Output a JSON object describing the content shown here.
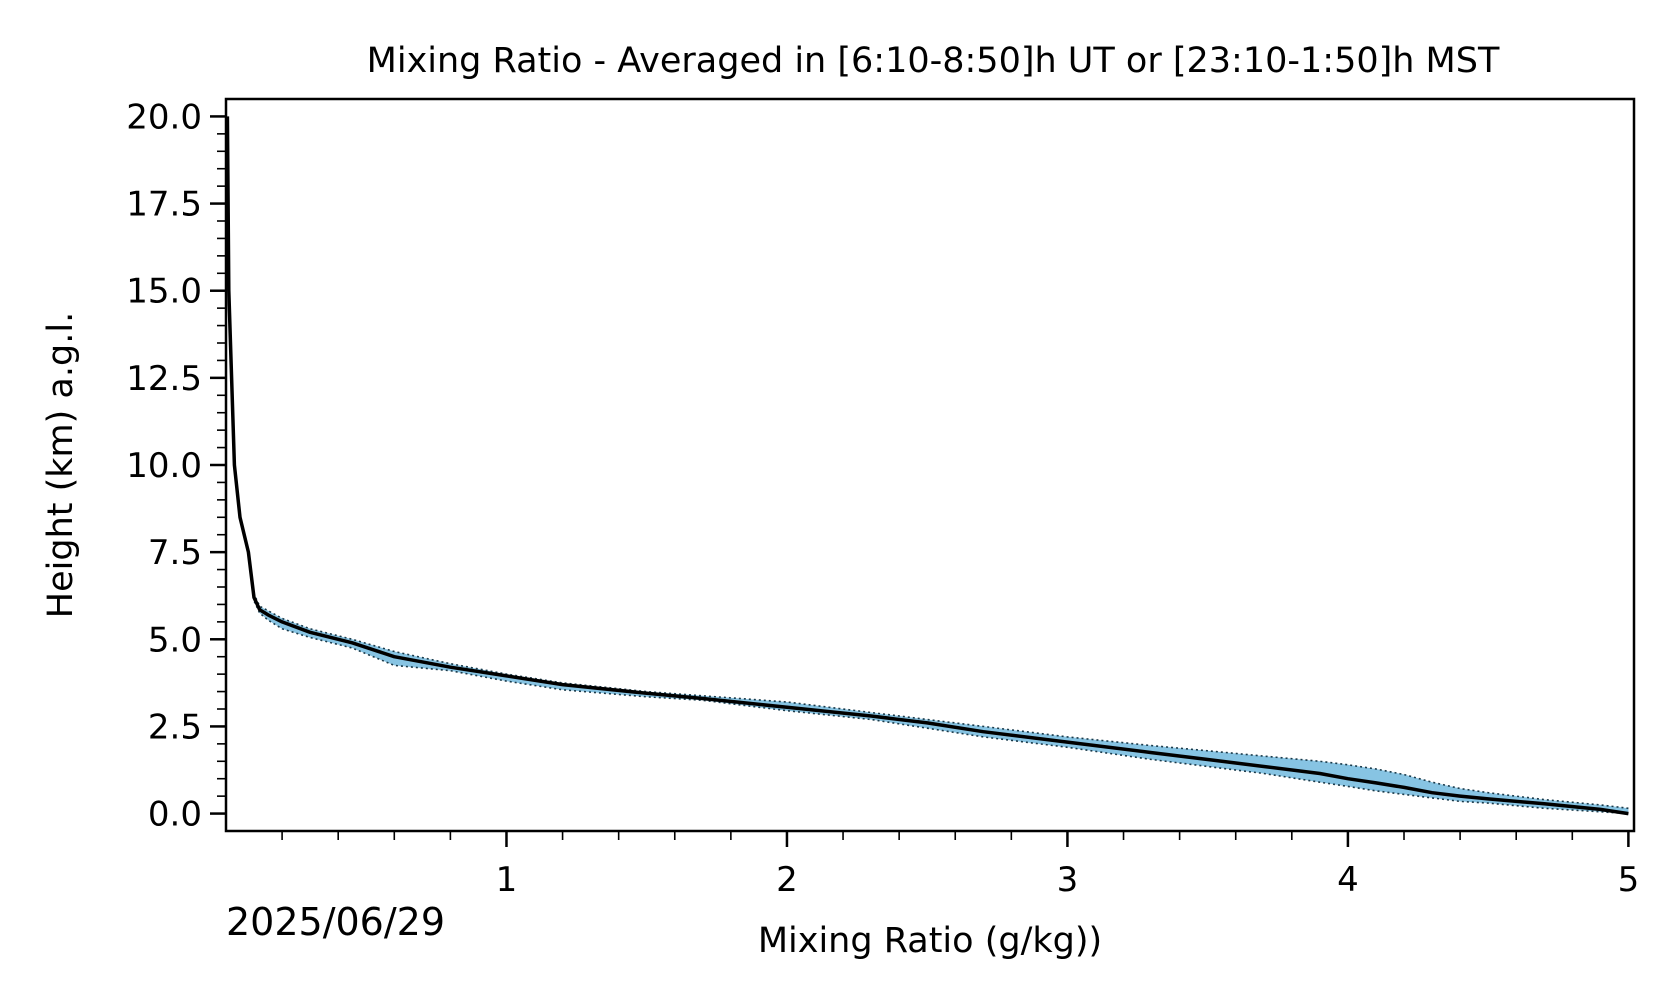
{
  "chart_data": {
    "type": "line",
    "title": "Mixing Ratio - Averaged in [6:10-8:50]h UT or [23:10-1:50]h MST",
    "xlabel": "Mixing Ratio (g/kg))",
    "ylabel": "Height (km) a.g.l.",
    "xlim": [
      0.0,
      5.02
    ],
    "ylim": [
      -0.5,
      20.5
    ],
    "x_ticks": [
      {
        "value": 1,
        "label": "1"
      },
      {
        "value": 2,
        "label": "2"
      },
      {
        "value": 3,
        "label": "3"
      },
      {
        "value": 4,
        "label": "4"
      },
      {
        "value": 5,
        "label": "5"
      }
    ],
    "y_ticks": [
      {
        "value": 0.0,
        "label": "0.0"
      },
      {
        "value": 2.5,
        "label": "2.5"
      },
      {
        "value": 5.0,
        "label": "5.0"
      },
      {
        "value": 7.5,
        "label": "7.5"
      },
      {
        "value": 10.0,
        "label": "10.0"
      },
      {
        "value": 12.5,
        "label": "12.5"
      },
      {
        "value": 15.0,
        "label": "15.0"
      },
      {
        "value": 17.5,
        "label": "17.5"
      },
      {
        "value": 20.0,
        "label": "20.0"
      }
    ],
    "grid": false,
    "date_label": "2025/06/29",
    "colors": {
      "mean": "#000000",
      "band_fill": "#87c4e3",
      "band_edge": "#1a3a4a"
    },
    "series": [
      {
        "role": "mean",
        "x": [
          5.0,
          4.9,
          4.7,
          4.5,
          4.4,
          4.3,
          4.2,
          4.1,
          4.0,
          3.9,
          3.7,
          3.5,
          3.3,
          3.0,
          2.7,
          2.5,
          2.3,
          2.0,
          1.7,
          1.5,
          1.2,
          1.0,
          0.8,
          0.6,
          0.45,
          0.3,
          0.2,
          0.15,
          0.12,
          0.1,
          0.08,
          0.05,
          0.03,
          0.02,
          0.01,
          0.005
        ],
        "y": [
          0.0,
          0.12,
          0.28,
          0.42,
          0.5,
          0.6,
          0.75,
          0.88,
          1.0,
          1.15,
          1.35,
          1.55,
          1.75,
          2.05,
          2.35,
          2.6,
          2.8,
          3.05,
          3.3,
          3.45,
          3.7,
          3.95,
          4.2,
          4.5,
          4.9,
          5.2,
          5.5,
          5.7,
          5.85,
          6.2,
          7.5,
          8.5,
          10.0,
          12.5,
          15.0,
          20.0
        ]
      },
      {
        "role": "band_lower",
        "x": [
          5.0,
          4.9,
          4.7,
          4.5,
          4.4,
          4.3,
          4.2,
          4.1,
          4.0,
          3.9,
          3.7,
          3.5,
          3.3,
          3.0,
          2.7,
          2.5,
          2.3,
          2.0,
          1.7,
          1.5,
          1.2,
          1.0,
          0.8,
          0.6,
          0.45,
          0.3,
          0.2,
          0.15,
          0.12,
          0.1
        ],
        "y": [
          0.0,
          0.05,
          0.15,
          0.3,
          0.35,
          0.45,
          0.55,
          0.65,
          0.78,
          0.9,
          1.15,
          1.35,
          1.55,
          1.9,
          2.2,
          2.45,
          2.7,
          2.95,
          3.25,
          3.35,
          3.55,
          3.8,
          4.1,
          4.25,
          4.75,
          5.05,
          5.3,
          5.55,
          5.75,
          6.1
        ]
      },
      {
        "role": "band_upper",
        "x": [
          5.0,
          4.9,
          4.7,
          4.5,
          4.4,
          4.3,
          4.2,
          4.1,
          4.0,
          3.9,
          3.7,
          3.5,
          3.3,
          3.0,
          2.7,
          2.5,
          2.3,
          2.0,
          1.7,
          1.5,
          1.2,
          1.0,
          0.8,
          0.6,
          0.45,
          0.3,
          0.2,
          0.15,
          0.12,
          0.1
        ],
        "y": [
          0.15,
          0.25,
          0.4,
          0.6,
          0.72,
          0.9,
          1.12,
          1.28,
          1.4,
          1.5,
          1.65,
          1.8,
          1.95,
          2.2,
          2.5,
          2.7,
          2.9,
          3.2,
          3.38,
          3.5,
          3.75,
          4.0,
          4.3,
          4.65,
          5.0,
          5.3,
          5.6,
          5.82,
          5.95,
          6.3
        ]
      }
    ]
  }
}
